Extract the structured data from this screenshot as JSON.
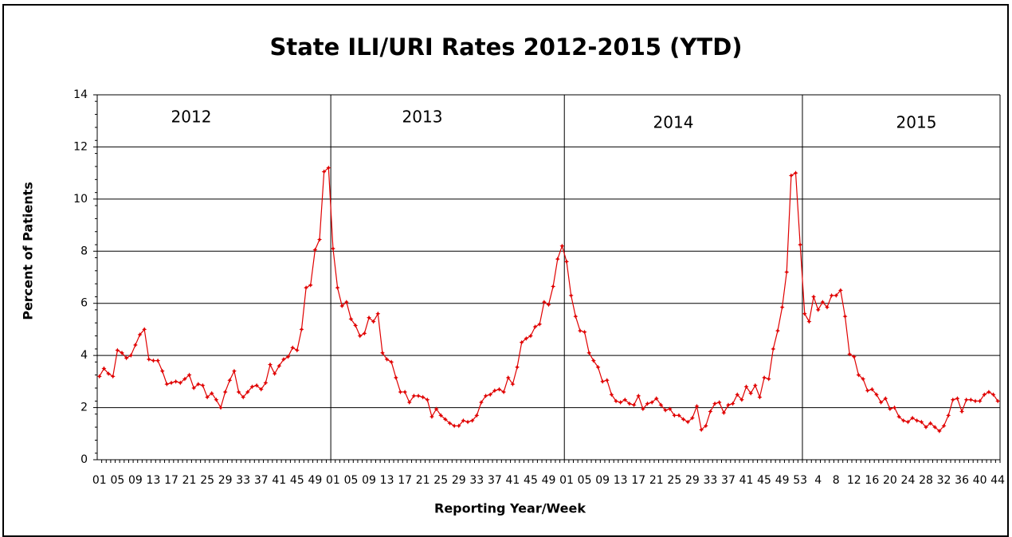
{
  "chart_data": {
    "type": "line",
    "title": "State ILI/URI Rates 2012-2015 (YTD)",
    "x_label": "Reporting Year/Week",
    "y_label": "Percent of Patients",
    "annotations": [
      "2012",
      "2013",
      "2014",
      "2015"
    ],
    "color": "#e00000",
    "grid": true,
    "ylim": [
      0,
      14
    ],
    "yticks": [
      0,
      2,
      4,
      6,
      8,
      10,
      12,
      14
    ],
    "categories": [
      "01",
      null,
      null,
      null,
      "05",
      null,
      null,
      null,
      "09",
      null,
      null,
      null,
      "13",
      null,
      null,
      null,
      "17",
      null,
      null,
      null,
      "21",
      null,
      null,
      null,
      "25",
      null,
      null,
      null,
      "29",
      null,
      null,
      null,
      "33",
      null,
      null,
      null,
      "37",
      null,
      null,
      null,
      "41",
      null,
      null,
      null,
      "45",
      null,
      null,
      null,
      "49",
      null,
      null,
      null,
      "01",
      null,
      null,
      null,
      "05",
      null,
      null,
      null,
      "09",
      null,
      null,
      null,
      "13",
      null,
      null,
      null,
      "17",
      null,
      null,
      null,
      "21",
      null,
      null,
      null,
      "25",
      null,
      null,
      null,
      "29",
      null,
      null,
      null,
      "33",
      null,
      null,
      null,
      "37",
      null,
      null,
      null,
      "41",
      null,
      null,
      null,
      "45",
      null,
      null,
      null,
      "49",
      null,
      null,
      null,
      "01",
      null,
      null,
      null,
      "05",
      null,
      null,
      null,
      "09",
      null,
      null,
      null,
      "13",
      null,
      null,
      null,
      "17",
      null,
      null,
      null,
      "21",
      null,
      null,
      null,
      "25",
      null,
      null,
      null,
      "29",
      null,
      null,
      null,
      "33",
      null,
      null,
      null,
      "37",
      null,
      null,
      null,
      "41",
      null,
      null,
      null,
      "45",
      null,
      null,
      null,
      "49",
      null,
      null,
      null,
      "53",
      null,
      null,
      null,
      "4",
      null,
      null,
      null,
      "8",
      null,
      null,
      null,
      "12",
      null,
      null,
      null,
      "16",
      null,
      null,
      null,
      "20",
      null,
      null,
      null,
      "24",
      null,
      null,
      null,
      "28",
      null,
      null,
      null,
      "32",
      null,
      null,
      null,
      "36",
      null,
      null,
      null,
      "40",
      null,
      null,
      null,
      "44"
    ],
    "values": [
      3.2,
      3.5,
      3.3,
      3.2,
      4.2,
      4.1,
      3.9,
      4.0,
      4.4,
      4.8,
      5.0,
      3.85,
      3.8,
      3.8,
      3.4,
      2.9,
      2.95,
      3.0,
      2.95,
      3.1,
      3.25,
      2.75,
      2.9,
      2.85,
      2.4,
      2.55,
      2.3,
      2.0,
      2.6,
      3.05,
      3.4,
      2.6,
      2.4,
      2.6,
      2.8,
      2.85,
      2.7,
      2.95,
      3.65,
      3.3,
      3.6,
      3.85,
      3.95,
      4.3,
      4.2,
      5.0,
      6.6,
      6.7,
      8.05,
      8.45,
      11.05,
      11.2,
      8.1,
      6.6,
      5.9,
      6.05,
      5.4,
      5.15,
      4.75,
      4.85,
      5.45,
      5.3,
      5.6,
      4.1,
      3.85,
      3.75,
      3.15,
      2.6,
      2.6,
      2.2,
      2.45,
      2.45,
      2.4,
      2.3,
      1.65,
      1.95,
      1.7,
      1.55,
      1.4,
      1.3,
      1.3,
      1.5,
      1.45,
      1.5,
      1.7,
      2.2,
      2.45,
      2.5,
      2.65,
      2.7,
      2.6,
      3.15,
      2.9,
      3.55,
      4.5,
      4.65,
      4.75,
      5.1,
      5.2,
      6.05,
      5.95,
      6.65,
      7.7,
      8.2,
      7.6,
      6.3,
      5.5,
      4.95,
      4.9,
      4.1,
      3.8,
      3.55,
      3.0,
      3.05,
      2.5,
      2.25,
      2.2,
      2.3,
      2.15,
      2.1,
      2.45,
      1.95,
      2.15,
      2.2,
      2.35,
      2.1,
      1.9,
      1.95,
      1.7,
      1.7,
      1.55,
      1.45,
      1.6,
      2.05,
      1.15,
      1.3,
      1.85,
      2.15,
      2.2,
      1.8,
      2.1,
      2.15,
      2.5,
      2.3,
      2.8,
      2.55,
      2.85,
      2.4,
      3.15,
      3.1,
      4.25,
      4.95,
      5.85,
      7.2,
      10.9,
      11.0,
      8.25,
      5.6,
      5.3,
      6.25,
      5.75,
      6.05,
      5.85,
      6.3,
      6.3,
      6.5,
      5.5,
      4.05,
      3.95,
      3.25,
      3.1,
      2.65,
      2.7,
      2.5,
      2.2,
      2.35,
      1.95,
      2.0,
      1.65,
      1.5,
      1.45,
      1.6,
      1.5,
      1.45,
      1.25,
      1.4,
      1.25,
      1.1,
      1.3,
      1.7,
      2.3,
      2.35,
      1.85,
      2.3,
      2.3,
      2.25,
      2.25,
      2.5,
      2.6,
      2.5,
      2.25
    ]
  }
}
